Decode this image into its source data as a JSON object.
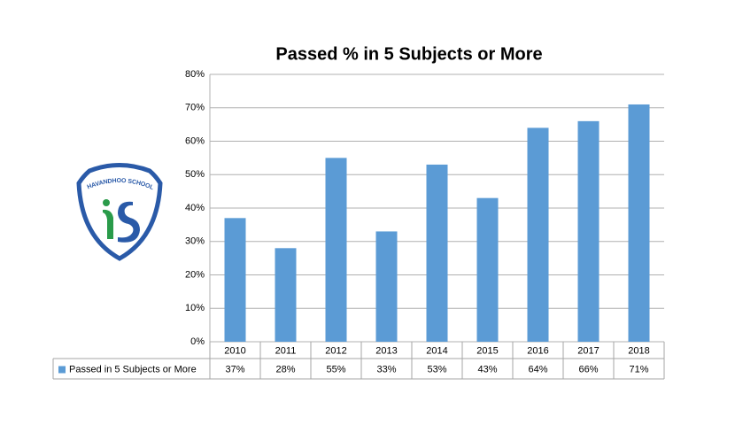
{
  "chart_data": {
    "type": "bar",
    "title": "Passed % in 5 Subjects or More",
    "categories": [
      "2010",
      "2011",
      "2012",
      "2013",
      "2014",
      "2015",
      "2016",
      "2017",
      "2018"
    ],
    "series": [
      {
        "name": "Passed in 5 Subjects or More",
        "color": "#5b9bd5",
        "values": [
          37,
          28,
          55,
          33,
          53,
          43,
          64,
          66,
          71
        ],
        "value_labels": [
          "37%",
          "28%",
          "55%",
          "33%",
          "53%",
          "43%",
          "64%",
          "66%",
          "71%"
        ]
      }
    ],
    "ylim": [
      0,
      80
    ],
    "yticks": [
      {
        "value": 0,
        "label": "0%"
      },
      {
        "value": 10,
        "label": "10%"
      },
      {
        "value": 20,
        "label": "20%"
      },
      {
        "value": 30,
        "label": "30%"
      },
      {
        "value": 40,
        "label": "40%"
      },
      {
        "value": 50,
        "label": "50%"
      },
      {
        "value": 60,
        "label": "60%"
      },
      {
        "value": 70,
        "label": "70%"
      },
      {
        "value": 80,
        "label": "80%"
      }
    ],
    "grid": true,
    "data_table": true
  },
  "logo": {
    "name": "IHAVANDHOO SCHOOL"
  }
}
